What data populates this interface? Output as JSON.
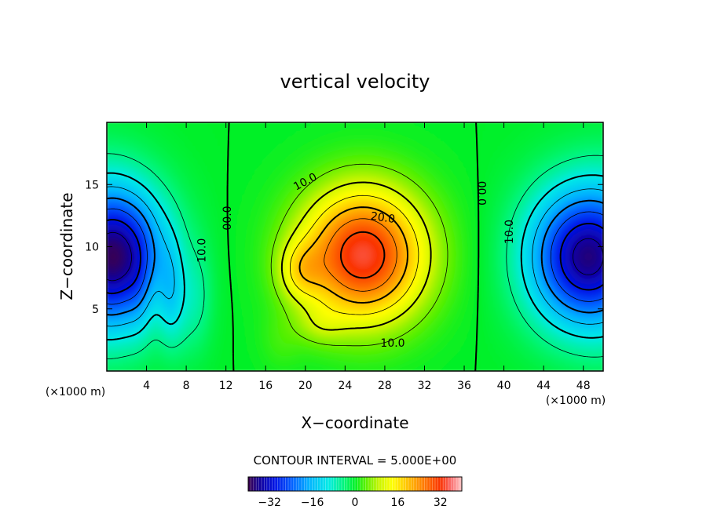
{
  "chart_data": {
    "type": "heatmap",
    "title": "vertical velocity",
    "xlabel": "X−coordinate",
    "ylabel": "Z−coordinate",
    "x_unit_left": "(×1000 m)",
    "x_unit_right": "(×1000 m)",
    "xlim": [
      0,
      50
    ],
    "ylim": [
      0,
      20
    ],
    "x_ticks": [
      4,
      8,
      12,
      16,
      20,
      24,
      28,
      32,
      36,
      40,
      44,
      48
    ],
    "x_tick_labels": [
      "4",
      "8",
      "12",
      "16",
      "20",
      "24",
      "28",
      "32",
      "36",
      "40",
      "44",
      "48"
    ],
    "y_ticks": [
      5,
      10,
      15
    ],
    "y_tick_labels": [
      "5",
      "10",
      "15"
    ],
    "contour_interval_label": "CONTOUR INTERVAL = 5.000E+00",
    "contour_interval": 5,
    "colorbar": {
      "min": -40,
      "max": 40,
      "ticks": [
        -32,
        -16,
        0,
        16,
        32
      ],
      "tick_labels": [
        "−32",
        "−16",
        "0",
        "16",
        "32"
      ]
    },
    "contour_labels": [
      {
        "text": "10.0",
        "x": 20.0,
        "z": 15.2,
        "angle": -28
      },
      {
        "text": "20.0",
        "x": 27.8,
        "z": 12.3,
        "angle": 8
      },
      {
        "text": "10.0",
        "x": 28.8,
        "z": 2.2,
        "angle": 0
      },
      {
        "text": "00.0",
        "x": 12.2,
        "z": 12.3,
        "angle": -90
      },
      {
        "text": "00.0",
        "x": 37.7,
        "z": 14.3,
        "angle": 90
      },
      {
        "text": "10.0",
        "x": 9.6,
        "z": 9.7,
        "angle": -90
      },
      {
        "text": "10.0",
        "x": 40.6,
        "z": 11.2,
        "angle": -90
      }
    ],
    "field_features": [
      {
        "name": "updraft-core",
        "x": 25.5,
        "z": 9.5,
        "value": 32
      },
      {
        "name": "downdraft-left",
        "x": 0.5,
        "z": 8.5,
        "value": -34
      },
      {
        "name": "downdraft-right",
        "x": 48.0,
        "z": 9.0,
        "value": -33
      }
    ]
  }
}
